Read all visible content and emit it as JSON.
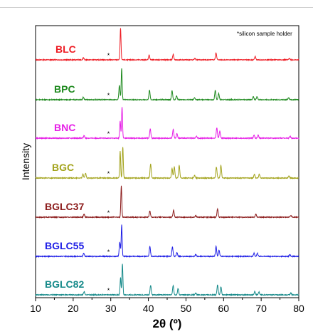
{
  "chart_data": {
    "type": "line",
    "title": "",
    "xlabel": "2θ (º)",
    "ylabel": "Intensity",
    "xlim": [
      10,
      80
    ],
    "xticks": [
      "10",
      "20",
      "30",
      "40",
      "50",
      "60",
      "70",
      "80"
    ],
    "grid": false,
    "annotation": "*silicon sample holder",
    "marker_symbol": "*",
    "marker_x": 29.4,
    "series": [
      {
        "name": "BLC",
        "color": "#ee1c24",
        "peaks": [
          [
            22.7,
            0.07
          ],
          [
            32.6,
            1.0
          ],
          [
            40.2,
            0.15
          ],
          [
            46.6,
            0.17
          ],
          [
            52.4,
            0.05
          ],
          [
            58.0,
            0.22
          ],
          [
            68.4,
            0.1
          ],
          [
            77.5,
            0.05
          ]
        ]
      },
      {
        "name": "BPC",
        "color": "#1f8a1f",
        "peaks": [
          [
            22.7,
            0.08
          ],
          [
            32.3,
            0.45
          ],
          [
            32.9,
            1.0
          ],
          [
            40.3,
            0.3
          ],
          [
            46.3,
            0.28
          ],
          [
            47.5,
            0.12
          ],
          [
            52.3,
            0.06
          ],
          [
            57.8,
            0.3
          ],
          [
            58.7,
            0.2
          ],
          [
            67.9,
            0.1
          ],
          [
            68.9,
            0.1
          ],
          [
            77.3,
            0.06
          ]
        ]
      },
      {
        "name": "BNC",
        "color": "#e61ee6",
        "peaks": [
          [
            22.9,
            0.08
          ],
          [
            32.5,
            0.55
          ],
          [
            33.0,
            1.0
          ],
          [
            40.5,
            0.3
          ],
          [
            46.6,
            0.28
          ],
          [
            47.6,
            0.15
          ],
          [
            52.8,
            0.06
          ],
          [
            58.2,
            0.33
          ],
          [
            59.0,
            0.22
          ],
          [
            68.1,
            0.1
          ],
          [
            69.2,
            0.1
          ],
          [
            77.7,
            0.06
          ]
        ]
      },
      {
        "name": "BGC",
        "color": "#a3a31c",
        "peaks": [
          [
            22.6,
            0.12
          ],
          [
            23.3,
            0.15
          ],
          [
            32.5,
            0.85
          ],
          [
            33.2,
            1.0
          ],
          [
            40.6,
            0.45
          ],
          [
            46.3,
            0.3
          ],
          [
            46.9,
            0.35
          ],
          [
            48.2,
            0.4
          ],
          [
            52.3,
            0.08
          ],
          [
            58.1,
            0.35
          ],
          [
            59.3,
            0.4
          ],
          [
            68.2,
            0.12
          ],
          [
            69.5,
            0.12
          ],
          [
            77.4,
            0.06
          ]
        ]
      },
      {
        "name": "BGLC37",
        "color": "#8b1a1a",
        "peaks": [
          [
            22.9,
            0.1
          ],
          [
            32.8,
            1.0
          ],
          [
            40.4,
            0.2
          ],
          [
            46.7,
            0.22
          ],
          [
            52.6,
            0.05
          ],
          [
            58.4,
            0.27
          ],
          [
            68.6,
            0.1
          ],
          [
            77.9,
            0.05
          ]
        ]
      },
      {
        "name": "BGLC55",
        "color": "#1e1ee6",
        "peaks": [
          [
            22.8,
            0.1
          ],
          [
            32.4,
            0.45
          ],
          [
            32.9,
            1.0
          ],
          [
            40.4,
            0.32
          ],
          [
            46.4,
            0.3
          ],
          [
            47.6,
            0.12
          ],
          [
            52.6,
            0.06
          ],
          [
            58.0,
            0.32
          ],
          [
            58.8,
            0.2
          ],
          [
            68.1,
            0.1
          ],
          [
            69.0,
            0.1
          ],
          [
            77.6,
            0.06
          ]
        ]
      },
      {
        "name": "BGLC82",
        "color": "#168a8a",
        "peaks": [
          [
            22.9,
            0.1
          ],
          [
            32.6,
            0.55
          ],
          [
            33.1,
            1.0
          ],
          [
            40.6,
            0.3
          ],
          [
            46.6,
            0.3
          ],
          [
            47.9,
            0.2
          ],
          [
            52.6,
            0.06
          ],
          [
            58.4,
            0.32
          ],
          [
            59.3,
            0.25
          ],
          [
            68.3,
            0.1
          ],
          [
            69.4,
            0.1
          ],
          [
            77.9,
            0.06
          ]
        ]
      }
    ]
  }
}
